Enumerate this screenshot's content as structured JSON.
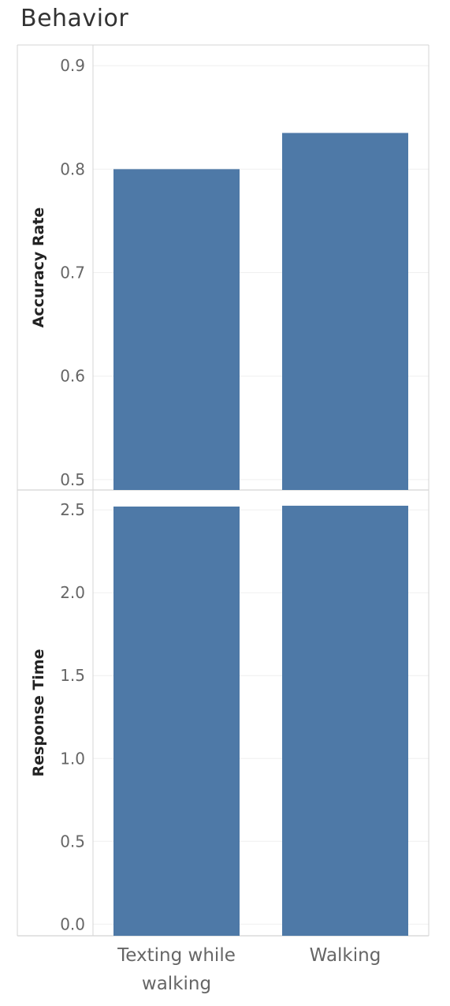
{
  "title": "Behavior",
  "chart_data": [
    {
      "type": "bar",
      "categories": [
        "Texting while walking",
        "Walking"
      ],
      "values": [
        0.8,
        0.835
      ],
      "ylabel": "Accuracy Rate",
      "ylim": [
        0.49,
        0.92
      ],
      "yticks": [
        "0.5",
        "0.6",
        "0.7",
        "0.8",
        "0.9"
      ],
      "color": "#4e79a7",
      "grid": true
    },
    {
      "type": "bar",
      "categories": [
        "Texting while walking",
        "Walking"
      ],
      "values": [
        2.52,
        2.525
      ],
      "ylabel": "Response Time",
      "ylim": [
        -0.07,
        2.62
      ],
      "yticks": [
        "0.0",
        "0.5",
        "1.0",
        "1.5",
        "2.0",
        "2.5"
      ],
      "color": "#4e79a7",
      "grid": true
    }
  ],
  "x_axis": {
    "category_lines": [
      [
        "Texting while",
        "walking"
      ],
      [
        "Walking"
      ]
    ]
  }
}
